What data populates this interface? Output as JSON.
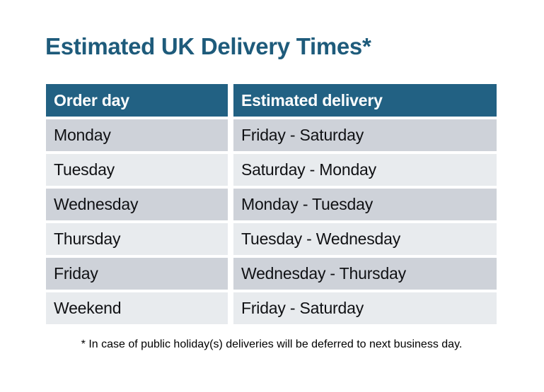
{
  "page": {
    "title": "Estimated UK Delivery Times*",
    "footnote": "* In case of public holiday(s) deliveries will be deferred to next business day."
  },
  "table": {
    "columns": [
      "Order day",
      "Estimated delivery"
    ],
    "rows": [
      {
        "order_day": "Monday",
        "estimated_delivery": "Friday - Saturday"
      },
      {
        "order_day": "Tuesday",
        "estimated_delivery": "Saturday - Monday"
      },
      {
        "order_day": "Wednesday",
        "estimated_delivery": "Monday - Tuesday"
      },
      {
        "order_day": "Thursday",
        "estimated_delivery": "Tuesday - Wednesday"
      },
      {
        "order_day": "Friday",
        "estimated_delivery": "Wednesday - Thursday"
      },
      {
        "order_day": "Weekend",
        "estimated_delivery": "Friday - Saturday"
      }
    ]
  },
  "colors": {
    "title_text": "#1e5b7b",
    "header_background": "#226183",
    "header_text": "#ffffff",
    "row_dark": "#ced2d9",
    "row_light": "#e8ebee",
    "cell_text": "#101114",
    "page_background": "#ffffff"
  }
}
